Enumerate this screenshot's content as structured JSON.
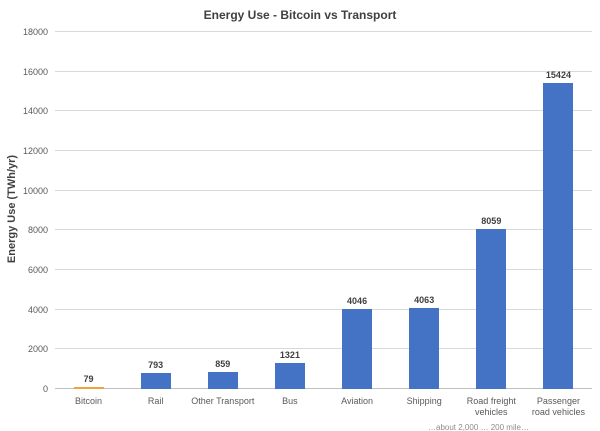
{
  "chart_data": {
    "type": "bar",
    "title": "Energy Use - Bitcoin vs Transport",
    "xlabel": "",
    "ylabel": "Energy Use (TWh/yr)",
    "categories": [
      "Bitcoin",
      "Rail",
      "Other Transport",
      "Bus",
      "Aviation",
      "Shipping",
      "Road freight vehicles",
      "Passenger road vehicles"
    ],
    "values": [
      79,
      793,
      859,
      1321,
      4046,
      4063,
      8059,
      15424
    ],
    "value_labels": [
      "79",
      "793",
      "859",
      "1321",
      "4046",
      "4063",
      "8059",
      "15424"
    ],
    "bar_colors": [
      "#efa53f",
      "#4472c4",
      "#4472c4",
      "#4472c4",
      "#4472c4",
      "#4472c4",
      "#4472c4",
      "#4472c4"
    ],
    "ylim": [
      0,
      18000
    ],
    "ytick_step": 2000,
    "ytick_labels": [
      "0",
      "2000",
      "4000",
      "6000",
      "8000",
      "10000",
      "12000",
      "14000",
      "16000",
      "18000"
    ],
    "grid": "on",
    "legend": "none",
    "colors": {
      "bar_blue": "#4472c4",
      "bar_orange": "#efa53f",
      "gridline": "#d9d9d9",
      "axis_line": "#bfbfbf",
      "title_text": "#404040",
      "tick_text": "#595959"
    }
  },
  "footer": {
    "clipped_caption": "…about 2,000 … 200 mile…"
  }
}
